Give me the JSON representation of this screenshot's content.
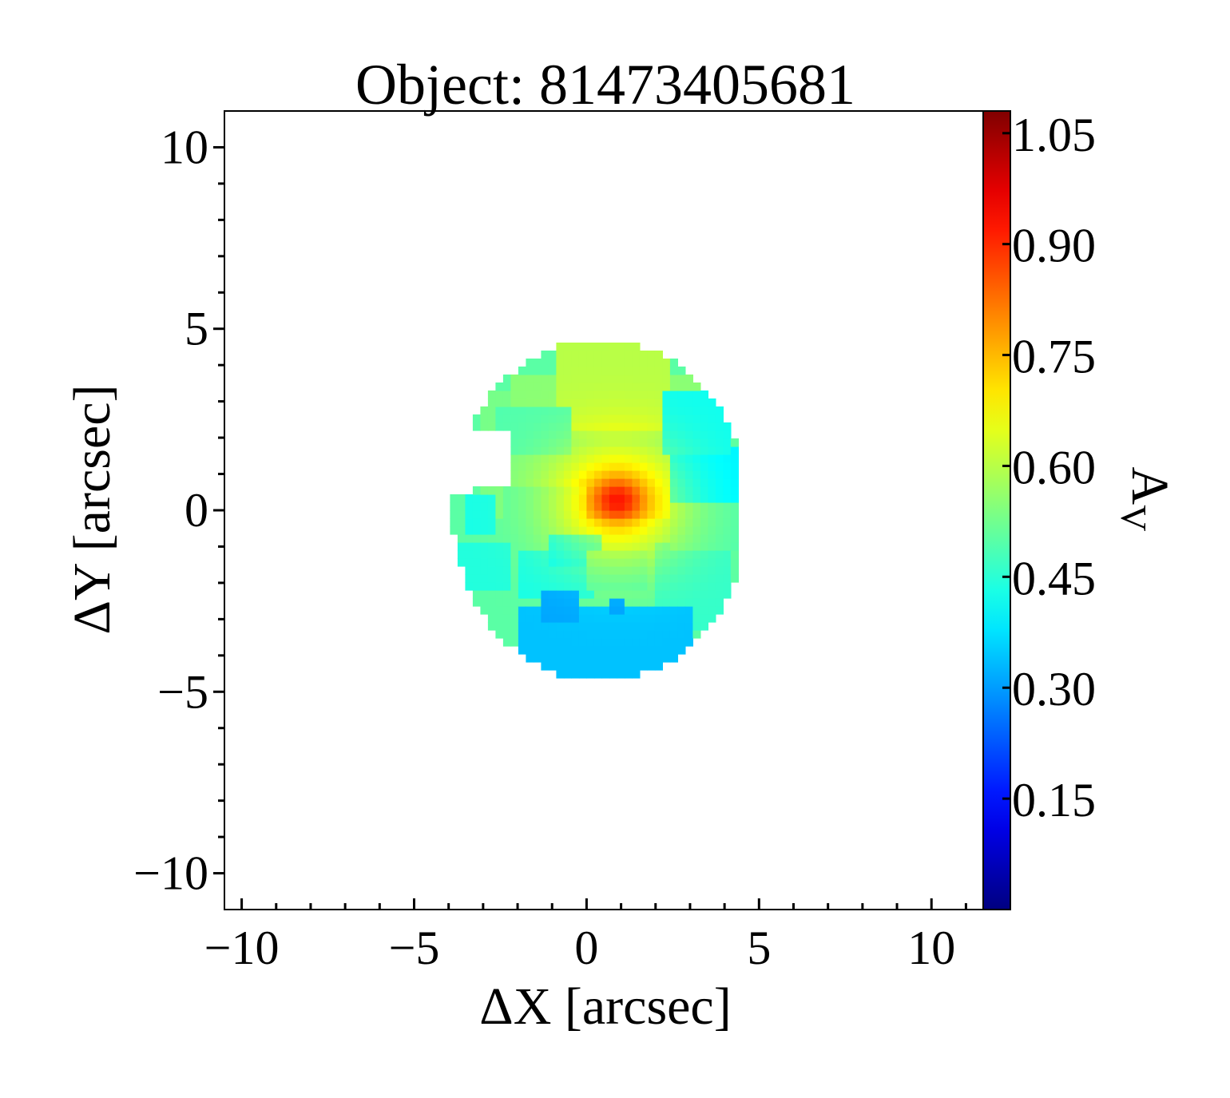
{
  "chart_data": {
    "type": "heatmap",
    "title": "Object: 81473405681",
    "xlabel": "ΔX [arcsec]",
    "ylabel": "ΔY [arcsec]",
    "xlim": [
      -10.5,
      11.5
    ],
    "ylim": [
      -11.0,
      11.0
    ],
    "x_ticks": [
      -10,
      -5,
      0,
      5,
      10
    ],
    "x_tick_labels": [
      "−10",
      "−5",
      "0",
      "5",
      "10"
    ],
    "y_ticks": [
      -10,
      -5,
      0,
      5,
      10
    ],
    "y_tick_labels": [
      "−10",
      "−5",
      "0",
      "5",
      "10"
    ],
    "grid": false,
    "colorbar": {
      "label": "A",
      "label_subscript": "V",
      "range": [
        0.0,
        1.08
      ],
      "colormap": "jet",
      "ticks": [
        0.15,
        0.3,
        0.45,
        0.6,
        0.75,
        0.9,
        1.05
      ],
      "tick_labels": [
        "0.15",
        "0.30",
        "0.45",
        "0.60",
        "0.75",
        "0.90",
        "1.05"
      ]
    },
    "map_regions": [
      {
        "x": [
          -3.0,
          2.6
        ],
        "y": [
          -0.3,
          3.2
        ],
        "value": 0.53
      },
      {
        "x": [
          -2.2,
          3.4
        ],
        "y": [
          2.0,
          3.8
        ],
        "value": 0.55
      },
      {
        "x": [
          -0.8,
          2.4
        ],
        "y": [
          2.3,
          4.6
        ],
        "value": 0.6
      },
      {
        "x": [
          -2.6,
          -0.4
        ],
        "y": [
          1.6,
          2.8
        ],
        "value": 0.49
      },
      {
        "x": [
          -2.4,
          0.0
        ],
        "y": [
          -1.5,
          0.6
        ],
        "value": 0.5
      },
      {
        "x": [
          -3.5,
          -2.6
        ],
        "y": [
          -0.6,
          0.5
        ],
        "value": 0.43
      },
      {
        "x": [
          -3.8,
          -2.2
        ],
        "y": [
          -2.3,
          -0.8
        ],
        "value": 0.44
      },
      {
        "x": [
          -2.0,
          0.2
        ],
        "y": [
          -2.4,
          -1.2
        ],
        "value": 0.43
      },
      {
        "x": [
          -1.2,
          0.4
        ],
        "y": [
          -1.5,
          -0.6
        ],
        "value": 0.4
      },
      {
        "x": [
          0.0,
          1.8
        ],
        "y": [
          -2.2,
          -1.1
        ],
        "value": 0.48
      },
      {
        "x": [
          2.0,
          4.1
        ],
        "y": [
          -3.2,
          -0.8
        ],
        "value": 0.46
      },
      {
        "x": [
          2.5,
          4.5
        ],
        "y": [
          -1.0,
          0.2
        ],
        "value": 0.49
      },
      {
        "x": [
          2.4,
          4.5
        ],
        "y": [
          0.2,
          1.7
        ],
        "value": 0.39
      },
      {
        "x": [
          2.1,
          4.1
        ],
        "y": [
          1.5,
          3.2
        ],
        "value": 0.42
      },
      {
        "x": [
          -2.0,
          3.0
        ],
        "y": [
          -4.6,
          -2.6
        ],
        "value": 0.34
      },
      {
        "x": [
          -1.4,
          -0.2
        ],
        "y": [
          -3.1,
          -2.1
        ],
        "value": 0.31
      },
      {
        "x": [
          0.6,
          1.0
        ],
        "y": [
          -2.9,
          -2.5
        ],
        "value": 0.3
      }
    ],
    "blobs": [
      {
        "x": 0.9,
        "y": 0.2,
        "sx": 2.0,
        "sy": 1.7,
        "amp": 0.22
      },
      {
        "x": 0.9,
        "y": 0.3,
        "sx": 0.75,
        "sy": 0.6,
        "amp": 0.18
      }
    ],
    "peak": {
      "x": 0.7,
      "y": 0.3,
      "value": 0.92
    }
  }
}
